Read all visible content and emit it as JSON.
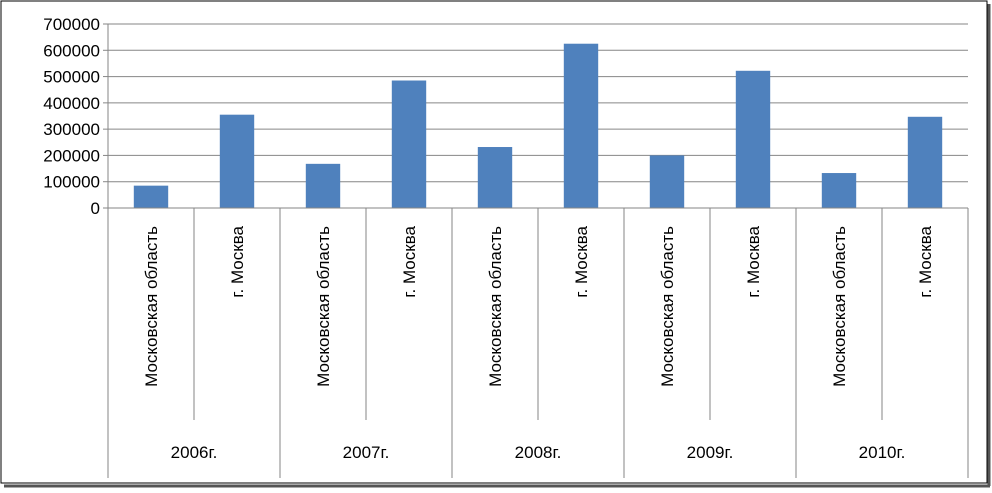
{
  "chart_data": {
    "type": "bar",
    "title": "",
    "xlabel": "",
    "ylabel": "",
    "ylim": [
      0,
      700000
    ],
    "y_ticks": [
      0,
      100000,
      200000,
      300000,
      400000,
      500000,
      600000,
      700000
    ],
    "y_tick_labels": [
      "0",
      "100000",
      "200000",
      "300000",
      "400000",
      "500000",
      "600000",
      "700000"
    ],
    "grid": true,
    "legend": "none",
    "bar_color": "#4f81bd",
    "groups": [
      {
        "label": "2006г.",
        "categories": [
          "Московская область",
          "г. Москва"
        ],
        "values": [
          85000,
          355000
        ]
      },
      {
        "label": "2007г.",
        "categories": [
          "Московская область",
          "г. Москва"
        ],
        "values": [
          168000,
          485000
        ]
      },
      {
        "label": "2008г.",
        "categories": [
          "Московская область",
          "г. Москва"
        ],
        "values": [
          232000,
          625000
        ]
      },
      {
        "label": "2009г.",
        "categories": [
          "Московская область",
          "г. Москва"
        ],
        "values": [
          200000,
          522000
        ]
      },
      {
        "label": "2010г.",
        "categories": [
          "Московская область",
          "г. Москва"
        ],
        "values": [
          133000,
          347000
        ]
      }
    ]
  }
}
